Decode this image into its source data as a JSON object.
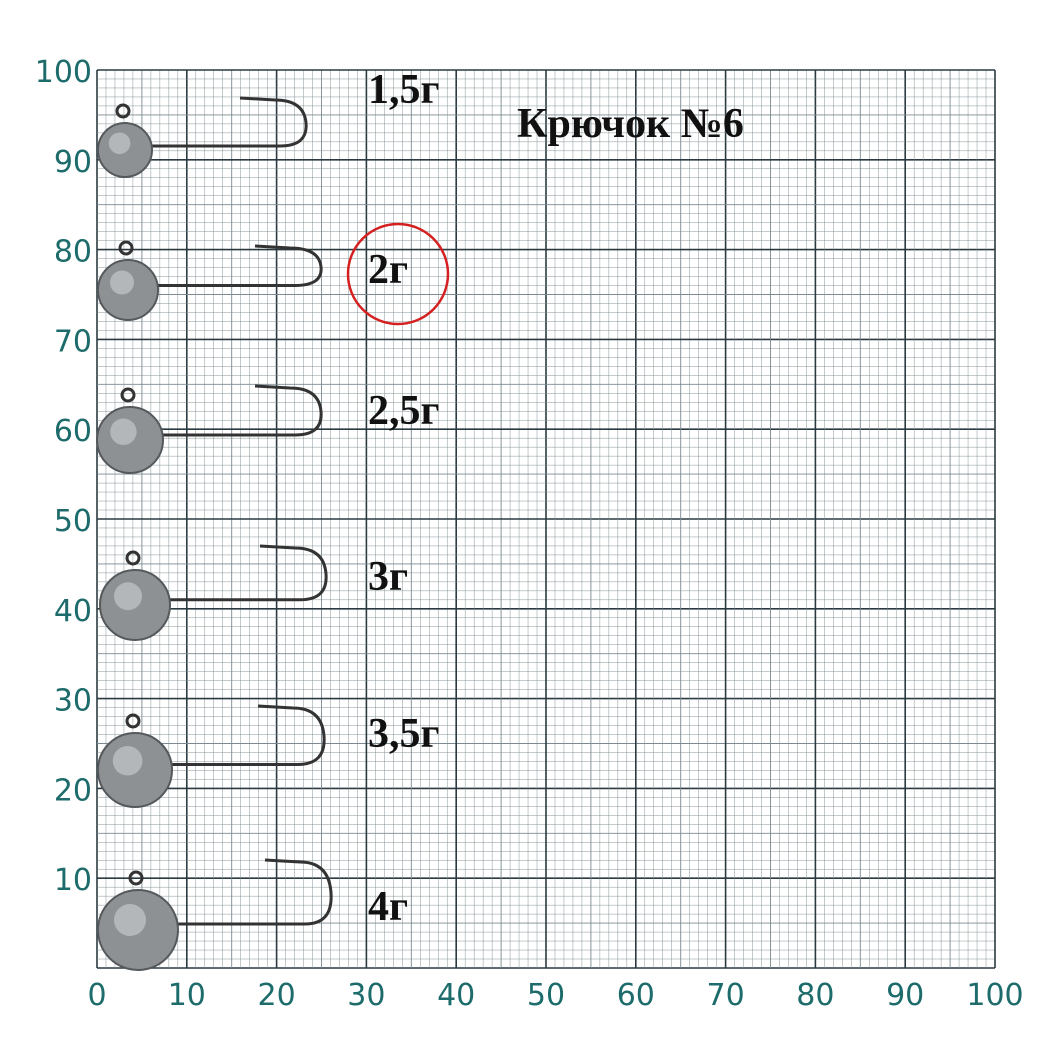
{
  "title": "Крючок №6",
  "weights": [
    "1,5г",
    "2г",
    "2,5г",
    "3г",
    "3,5г",
    "4г"
  ],
  "x_labels": [
    0,
    10,
    20,
    30,
    40,
    50,
    60,
    70,
    80,
    90,
    100
  ],
  "y_labels": [
    10,
    20,
    30,
    40,
    50,
    60,
    70,
    80,
    90,
    100
  ]
}
